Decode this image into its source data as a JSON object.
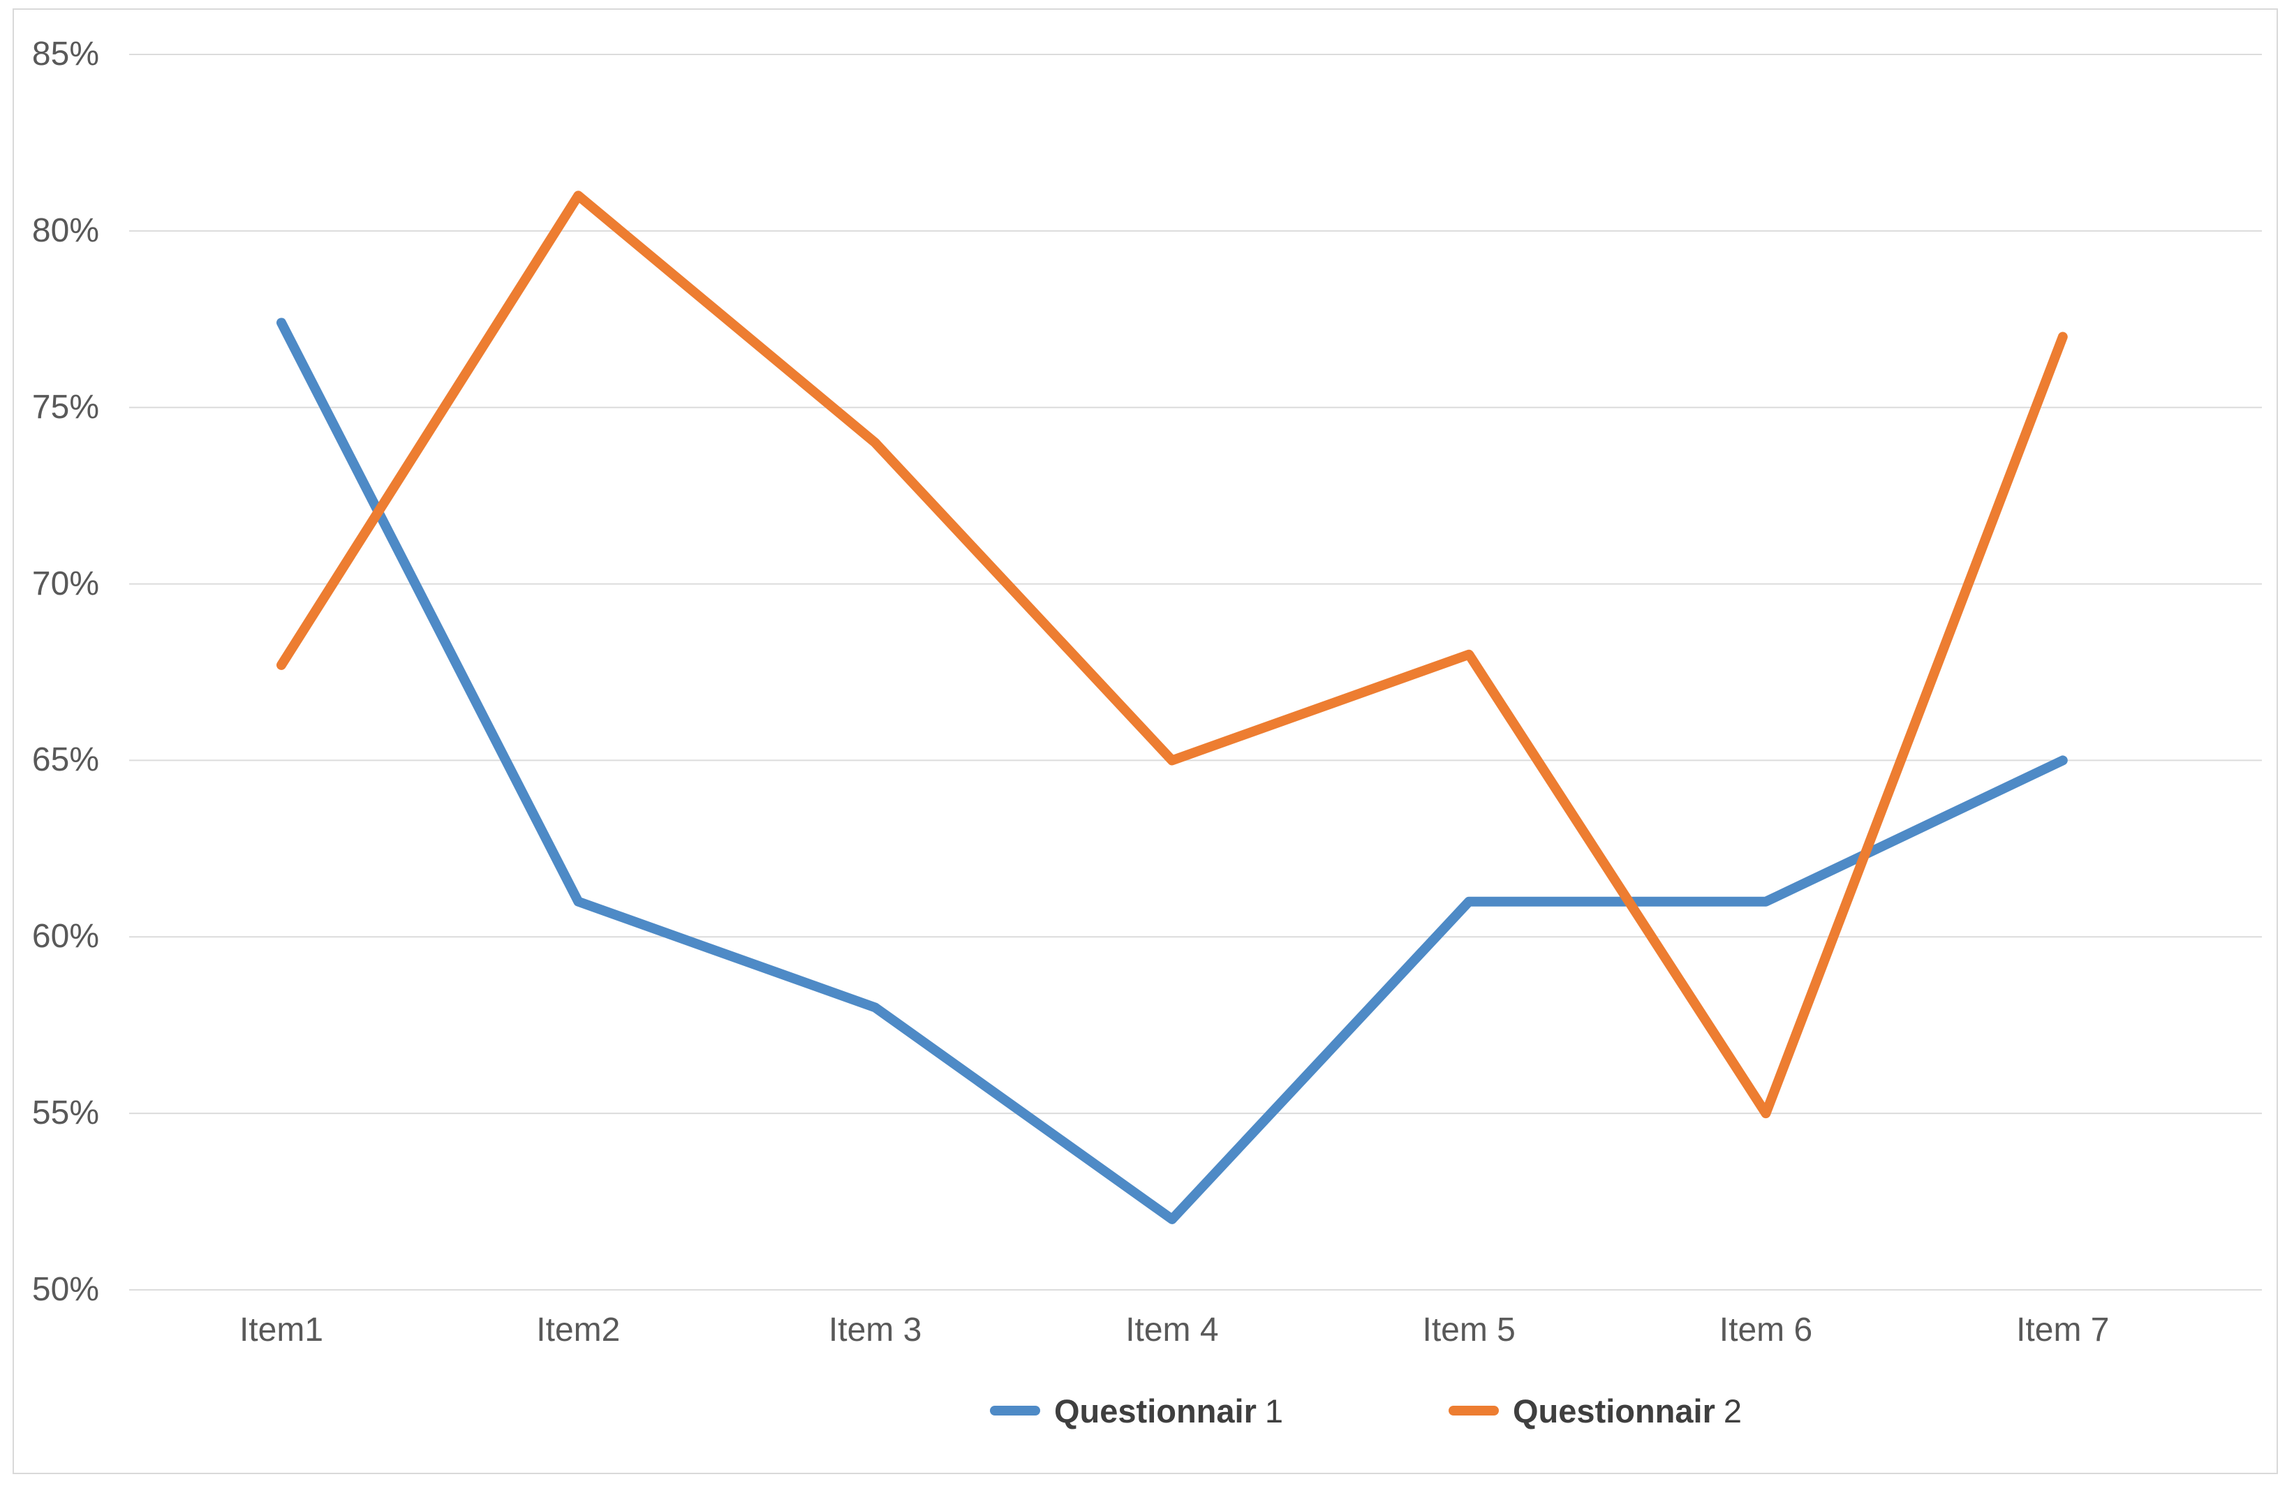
{
  "chart_data": {
    "type": "line",
    "title": "",
    "categories": [
      "Item1",
      "Item2",
      "Item 3",
      "Item 4",
      "Item 5",
      "Item 6",
      "Item 7"
    ],
    "series": [
      {
        "name": "Questionnair 1",
        "label_bold": "Questionnair",
        "label_num": "1",
        "color": "#4E8AC6",
        "values": [
          77.4,
          61,
          58,
          52,
          61,
          61,
          65
        ]
      },
      {
        "name": "Questionnair 2",
        "label_bold": "Questionnair",
        "label_num": "2",
        "color": "#ED7D31",
        "values": [
          67.7,
          81,
          74,
          65,
          68,
          55,
          77
        ]
      }
    ],
    "xlabel": "",
    "ylabel": "",
    "ylim": [
      50,
      85
    ],
    "ytick_step": 5,
    "ytick_labels": [
      "85%",
      "80%",
      "75%",
      "70%",
      "65%",
      "60%",
      "55%",
      "50%"
    ],
    "grid": "horizontal",
    "legend_position": "bottom-center"
  },
  "colors": {
    "background": "#FFFFFF",
    "frame_border": "#D9D9D9",
    "gridline": "#DCDCDC",
    "tick_text": "#595959",
    "legend_text": "#3F3F3F"
  }
}
